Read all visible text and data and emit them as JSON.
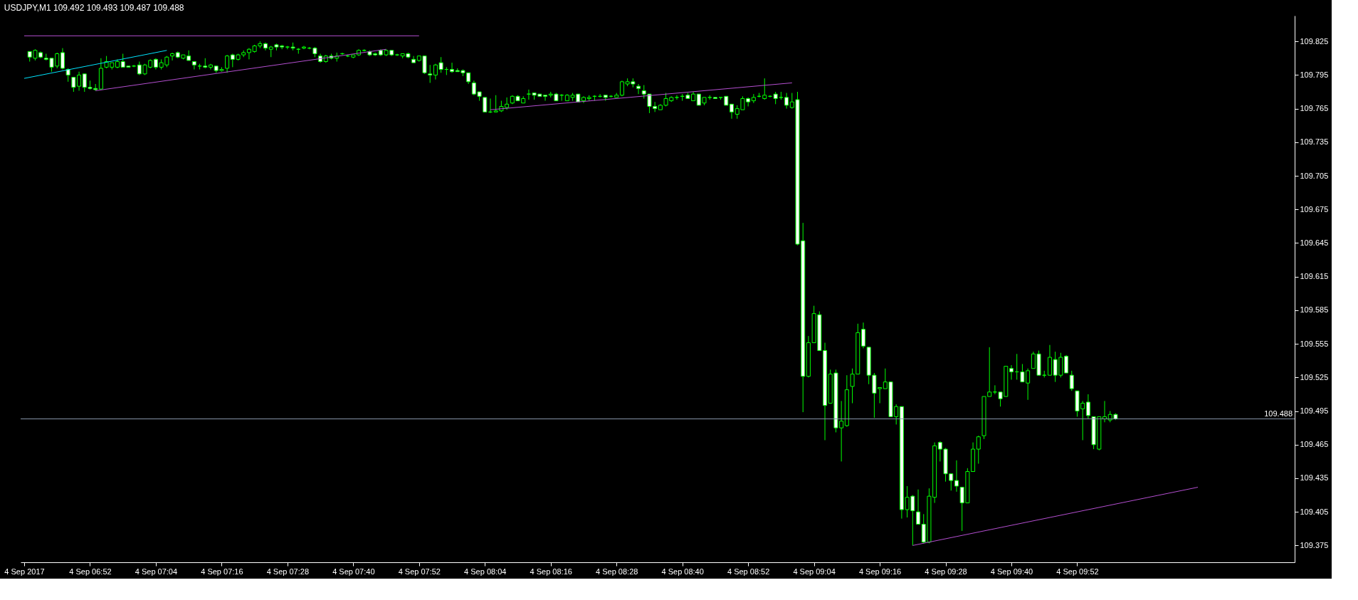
{
  "chart_data": {
    "type": "candlestick",
    "title": "USDJPY,M1  109.492 109.493 109.487 109.488",
    "color": "#00ff00",
    "xlim": [
      "2017-09-04T06:40",
      "2017-09-04T10:31"
    ],
    "ylim": [
      109.36,
      109.848
    ],
    "yticks": [
      109.375,
      109.405,
      109.435,
      109.465,
      109.495,
      109.525,
      109.555,
      109.585,
      109.615,
      109.645,
      109.675,
      109.705,
      109.735,
      109.765,
      109.795,
      109.825
    ],
    "xticks": [
      {
        "value": "2017-09-04T06:40",
        "label": "4 Sep 2017"
      },
      {
        "value": "2017-09-04T06:52",
        "label": "4 Sep 06:52"
      },
      {
        "value": "2017-09-04T07:04",
        "label": "4 Sep 07:04"
      },
      {
        "value": "2017-09-04T07:16",
        "label": "4 Sep 07:16"
      },
      {
        "value": "2017-09-04T07:28",
        "label": "4 Sep 07:28"
      },
      {
        "value": "2017-09-04T07:40",
        "label": "4 Sep 07:40"
      },
      {
        "value": "2017-09-04T07:52",
        "label": "4 Sep 07:52"
      },
      {
        "value": "2017-09-04T08:04",
        "label": "4 Sep 08:04"
      },
      {
        "value": "2017-09-04T08:16",
        "label": "4 Sep 08:16"
      },
      {
        "value": "2017-09-04T08:28",
        "label": "4 Sep 08:28"
      },
      {
        "value": "2017-09-04T08:40",
        "label": "4 Sep 08:40"
      },
      {
        "value": "2017-09-04T08:52",
        "label": "4 Sep 08:52"
      },
      {
        "value": "2017-09-04T09:04",
        "label": "4 Sep 09:04"
      },
      {
        "value": "2017-09-04T09:16",
        "label": "4 Sep 09:16"
      },
      {
        "value": "2017-09-04T09:28",
        "label": "4 Sep 09:28"
      },
      {
        "value": "2017-09-04T09:40",
        "label": "4 Sep 09:40"
      },
      {
        "value": "2017-09-04T09:52",
        "label": "4 Sep 09:52"
      }
    ],
    "x": [
      "2017-09-04T06:41",
      "2017-09-04T06:42",
      "2017-09-04T06:43",
      "2017-09-04T06:44",
      "2017-09-04T06:45",
      "2017-09-04T06:46",
      "2017-09-04T06:47",
      "2017-09-04T06:48",
      "2017-09-04T06:49",
      "2017-09-04T06:50",
      "2017-09-04T06:51",
      "2017-09-04T06:52",
      "2017-09-04T06:53",
      "2017-09-04T06:54",
      "2017-09-04T06:55",
      "2017-09-04T06:56",
      "2017-09-04T06:57",
      "2017-09-04T06:58",
      "2017-09-04T06:59",
      "2017-09-04T07:00",
      "2017-09-04T07:01",
      "2017-09-04T07:02",
      "2017-09-04T07:03",
      "2017-09-04T07:04",
      "2017-09-04T07:05",
      "2017-09-04T07:06",
      "2017-09-04T07:07",
      "2017-09-04T07:08",
      "2017-09-04T07:09",
      "2017-09-04T07:10",
      "2017-09-04T07:11",
      "2017-09-04T07:12",
      "2017-09-04T07:13",
      "2017-09-04T07:14",
      "2017-09-04T07:15",
      "2017-09-04T07:16",
      "2017-09-04T07:17",
      "2017-09-04T07:18",
      "2017-09-04T07:19",
      "2017-09-04T07:20",
      "2017-09-04T07:21",
      "2017-09-04T07:22",
      "2017-09-04T07:23",
      "2017-09-04T07:24",
      "2017-09-04T07:25",
      "2017-09-04T07:26",
      "2017-09-04T07:27",
      "2017-09-04T07:28",
      "2017-09-04T07:29",
      "2017-09-04T07:30",
      "2017-09-04T07:31",
      "2017-09-04T07:32",
      "2017-09-04T07:33",
      "2017-09-04T07:34",
      "2017-09-04T07:35",
      "2017-09-04T07:36",
      "2017-09-04T07:37",
      "2017-09-04T07:38",
      "2017-09-04T07:39",
      "2017-09-04T07:40",
      "2017-09-04T07:41",
      "2017-09-04T07:42",
      "2017-09-04T07:43",
      "2017-09-04T07:44",
      "2017-09-04T07:45",
      "2017-09-04T07:46",
      "2017-09-04T07:47",
      "2017-09-04T07:48",
      "2017-09-04T07:49",
      "2017-09-04T07:50",
      "2017-09-04T07:51",
      "2017-09-04T07:52",
      "2017-09-04T07:53",
      "2017-09-04T07:54",
      "2017-09-04T07:55",
      "2017-09-04T07:56",
      "2017-09-04T07:57",
      "2017-09-04T07:58",
      "2017-09-04T07:59",
      "2017-09-04T08:00",
      "2017-09-04T08:01",
      "2017-09-04T08:02",
      "2017-09-04T08:03",
      "2017-09-04T08:04",
      "2017-09-04T08:05",
      "2017-09-04T08:06",
      "2017-09-04T08:07",
      "2017-09-04T08:08",
      "2017-09-04T08:09",
      "2017-09-04T08:10",
      "2017-09-04T08:11",
      "2017-09-04T08:12",
      "2017-09-04T08:13",
      "2017-09-04T08:14",
      "2017-09-04T08:15",
      "2017-09-04T08:16",
      "2017-09-04T08:17",
      "2017-09-04T08:18",
      "2017-09-04T08:19",
      "2017-09-04T08:20",
      "2017-09-04T08:21",
      "2017-09-04T08:22",
      "2017-09-04T08:23",
      "2017-09-04T08:24",
      "2017-09-04T08:25",
      "2017-09-04T08:26",
      "2017-09-04T08:27",
      "2017-09-04T08:28",
      "2017-09-04T08:29",
      "2017-09-04T08:30",
      "2017-09-04T08:31",
      "2017-09-04T08:32",
      "2017-09-04T08:33",
      "2017-09-04T08:34",
      "2017-09-04T08:35",
      "2017-09-04T08:36",
      "2017-09-04T08:37",
      "2017-09-04T08:38",
      "2017-09-04T08:39",
      "2017-09-04T08:40",
      "2017-09-04T08:41",
      "2017-09-04T08:42",
      "2017-09-04T08:43",
      "2017-09-04T08:44",
      "2017-09-04T08:45",
      "2017-09-04T08:46",
      "2017-09-04T08:47",
      "2017-09-04T08:48",
      "2017-09-04T08:49",
      "2017-09-04T08:50",
      "2017-09-04T08:51",
      "2017-09-04T08:52",
      "2017-09-04T08:53",
      "2017-09-04T08:54",
      "2017-09-04T08:55",
      "2017-09-04T08:56",
      "2017-09-04T08:57",
      "2017-09-04T08:58",
      "2017-09-04T08:59",
      "2017-09-04T09:00",
      "2017-09-04T09:01",
      "2017-09-04T09:02",
      "2017-09-04T09:03",
      "2017-09-04T09:04",
      "2017-09-04T09:05",
      "2017-09-04T09:06",
      "2017-09-04T09:07",
      "2017-09-04T09:08",
      "2017-09-04T09:09",
      "2017-09-04T09:10",
      "2017-09-04T09:11",
      "2017-09-04T09:12",
      "2017-09-04T09:13",
      "2017-09-04T09:14",
      "2017-09-04T09:15",
      "2017-09-04T09:16",
      "2017-09-04T09:17",
      "2017-09-04T09:18",
      "2017-09-04T09:19",
      "2017-09-04T09:20",
      "2017-09-04T09:21",
      "2017-09-04T09:22",
      "2017-09-04T09:23",
      "2017-09-04T09:24",
      "2017-09-04T09:25",
      "2017-09-04T09:26",
      "2017-09-04T09:27",
      "2017-09-04T09:28",
      "2017-09-04T09:29",
      "2017-09-04T09:30",
      "2017-09-04T09:31",
      "2017-09-04T09:32",
      "2017-09-04T09:33",
      "2017-09-04T09:34",
      "2017-09-04T09:35",
      "2017-09-04T09:36",
      "2017-09-04T09:37",
      "2017-09-04T09:38",
      "2017-09-04T09:39",
      "2017-09-04T09:40",
      "2017-09-04T09:41",
      "2017-09-04T09:42",
      "2017-09-04T09:43",
      "2017-09-04T09:44",
      "2017-09-04T09:45",
      "2017-09-04T09:46",
      "2017-09-04T09:47",
      "2017-09-04T09:48",
      "2017-09-04T09:49",
      "2017-09-04T09:50",
      "2017-09-04T09:51",
      "2017-09-04T09:52",
      "2017-09-04T09:53",
      "2017-09-04T09:54",
      "2017-09-04T09:55",
      "2017-09-04T09:56",
      "2017-09-04T09:57",
      "2017-09-04T09:58",
      "2017-09-04T09:59"
    ],
    "ohlc": [
      [
        109.816,
        109.816,
        109.807,
        109.811
      ],
      [
        109.81,
        109.818,
        109.808,
        109.817
      ],
      [
        109.815,
        109.816,
        109.81,
        109.811
      ],
      [
        109.81,
        109.814,
        109.808,
        109.809
      ],
      [
        109.81,
        109.81,
        109.798,
        109.802
      ],
      [
        109.803,
        109.815,
        109.801,
        109.814
      ],
      [
        109.815,
        109.819,
        109.8,
        109.801
      ],
      [
        109.8,
        109.801,
        109.789,
        109.795
      ],
      [
        109.793,
        109.793,
        109.78,
        109.784
      ],
      [
        109.785,
        109.798,
        109.781,
        109.795
      ],
      [
        109.796,
        109.796,
        109.78,
        109.784
      ],
      [
        109.784,
        109.79,
        109.782,
        109.783
      ],
      [
        109.783,
        109.787,
        109.781,
        109.782
      ],
      [
        109.7825,
        109.81,
        109.782,
        109.801
      ],
      [
        109.802,
        109.812,
        109.801,
        109.807
      ],
      [
        109.802,
        109.806,
        109.8,
        109.806
      ],
      [
        109.802,
        109.809,
        109.801,
        109.807
      ],
      [
        109.807,
        109.814,
        109.802,
        109.802
      ],
      [
        109.803,
        109.803,
        109.802,
        109.802
      ],
      [
        109.803,
        109.804,
        109.802,
        109.803
      ],
      [
        109.804,
        109.807,
        109.795,
        109.796
      ],
      [
        109.796,
        109.805,
        109.795,
        109.804
      ],
      [
        109.802,
        109.809,
        109.801,
        109.808
      ],
      [
        109.809,
        109.81,
        109.8,
        109.802
      ],
      [
        109.802,
        109.809,
        109.8,
        109.806
      ],
      [
        109.804,
        109.812,
        109.802,
        109.811
      ],
      [
        109.812,
        109.815,
        109.808,
        109.814
      ],
      [
        109.815,
        109.816,
        109.81,
        109.811
      ],
      [
        109.81,
        109.813,
        109.809,
        109.813
      ],
      [
        109.812,
        109.817,
        109.808,
        109.808
      ],
      [
        109.807,
        109.807,
        109.8,
        109.804
      ],
      [
        109.803,
        109.805,
        109.8,
        109.803
      ],
      [
        109.803,
        109.81,
        109.801,
        109.802
      ],
      [
        109.802,
        109.805,
        109.8,
        109.804
      ],
      [
        109.803,
        109.803,
        109.797,
        109.799
      ],
      [
        109.799,
        109.802,
        109.798,
        109.8
      ],
      [
        109.801,
        109.813,
        109.797,
        109.812
      ],
      [
        109.813,
        109.814,
        109.802,
        109.809
      ],
      [
        109.809,
        109.814,
        109.808,
        109.813
      ],
      [
        109.813,
        109.817,
        109.811,
        109.815
      ],
      [
        109.815,
        109.819,
        109.809,
        109.818
      ],
      [
        109.816,
        109.822,
        109.815,
        109.821
      ],
      [
        109.821,
        109.825,
        109.819,
        109.823
      ],
      [
        109.823,
        109.824,
        109.817,
        109.819
      ],
      [
        109.818,
        109.821,
        109.811,
        109.82
      ],
      [
        109.822,
        109.823,
        109.817,
        109.82
      ],
      [
        109.821,
        109.822,
        109.818,
        109.82
      ],
      [
        109.82,
        109.821,
        109.818,
        109.82
      ],
      [
        109.82,
        109.824,
        109.817,
        109.819
      ],
      [
        109.818,
        109.819,
        109.814,
        109.818
      ],
      [
        109.819,
        109.821,
        109.818,
        109.82
      ],
      [
        109.819,
        109.82,
        109.818,
        109.819
      ],
      [
        109.819,
        109.82,
        109.811,
        109.814
      ],
      [
        109.812,
        109.814,
        109.806,
        109.807
      ],
      [
        109.807,
        109.813,
        109.806,
        109.812
      ],
      [
        109.812,
        109.814,
        109.809,
        109.81
      ],
      [
        109.81,
        109.815,
        109.807,
        109.812
      ],
      [
        109.814,
        109.815,
        109.813,
        109.814
      ],
      [
        109.812,
        109.813,
        109.811,
        109.812
      ],
      [
        109.811,
        109.813,
        109.81,
        109.813
      ],
      [
        109.813,
        109.818,
        109.812,
        109.817
      ],
      [
        109.817,
        109.818,
        109.816,
        109.817
      ],
      [
        109.816,
        109.817,
        109.812,
        109.813
      ],
      [
        109.814,
        109.815,
        109.812,
        109.813
      ],
      [
        109.817,
        109.818,
        109.812,
        109.813
      ],
      [
        109.813,
        109.818,
        109.812,
        109.817
      ],
      [
        109.817,
        109.817,
        109.812,
        109.813
      ],
      [
        109.813,
        109.814,
        109.812,
        109.813
      ],
      [
        109.812,
        109.814,
        109.81,
        109.814
      ],
      [
        109.814,
        109.815,
        109.81,
        109.811
      ],
      [
        109.809,
        109.812,
        109.806,
        109.806
      ],
      [
        109.808,
        109.812,
        109.807,
        109.812
      ],
      [
        109.812,
        109.812,
        109.796,
        109.797
      ],
      [
        109.796,
        109.804,
        109.788,
        109.795
      ],
      [
        109.795,
        109.805,
        109.791,
        109.804
      ],
      [
        109.806,
        109.811,
        109.797,
        109.8
      ],
      [
        109.8,
        109.802,
        109.795,
        109.8
      ],
      [
        109.8,
        109.806,
        109.797,
        109.798
      ],
      [
        109.799,
        109.801,
        109.798,
        109.798
      ],
      [
        109.799,
        109.8,
        109.794,
        109.797
      ],
      [
        109.797,
        109.797,
        109.787,
        109.789
      ],
      [
        109.788,
        109.79,
        109.777,
        109.778
      ],
      [
        109.78,
        109.78,
        109.772,
        109.776
      ],
      [
        109.775,
        109.775,
        109.762,
        109.762
      ],
      [
        109.762,
        109.774,
        109.761,
        109.762
      ],
      [
        109.762,
        109.777,
        109.762,
        109.763
      ],
      [
        109.763,
        109.772,
        109.762,
        109.767
      ],
      [
        109.766,
        109.775,
        109.764,
        109.769
      ],
      [
        109.77,
        109.777,
        109.769,
        109.776
      ],
      [
        109.776,
        109.777,
        109.772,
        109.772
      ],
      [
        109.77,
        109.776,
        109.77,
        109.774
      ],
      [
        109.778,
        109.782,
        109.773,
        109.778
      ],
      [
        109.779,
        109.779,
        109.773,
        109.777
      ],
      [
        109.778,
        109.778,
        109.776,
        109.776
      ],
      [
        109.777,
        109.777,
        109.772,
        109.776
      ],
      [
        109.777,
        109.78,
        109.775,
        109.778
      ],
      [
        109.778,
        109.779,
        109.772,
        109.772
      ],
      [
        109.777,
        109.778,
        109.772,
        109.777
      ],
      [
        109.772,
        109.778,
        109.772,
        109.777
      ],
      [
        109.775,
        109.779,
        109.772,
        109.777
      ],
      [
        109.778,
        109.778,
        109.771,
        109.771
      ],
      [
        109.772,
        109.776,
        109.77,
        109.775
      ],
      [
        109.774,
        109.777,
        109.772,
        109.775
      ],
      [
        109.776,
        109.777,
        109.772,
        109.776
      ],
      [
        109.776,
        109.778,
        109.775,
        109.776
      ],
      [
        109.777,
        109.777,
        109.772,
        109.775
      ],
      [
        109.776,
        109.777,
        109.775,
        109.776
      ],
      [
        109.775,
        109.779,
        109.775,
        109.777
      ],
      [
        109.777,
        109.79,
        109.776,
        109.789
      ],
      [
        109.787,
        109.792,
        109.785,
        109.789
      ],
      [
        109.789,
        109.792,
        109.784,
        109.787
      ],
      [
        109.785,
        109.787,
        109.778,
        109.783
      ],
      [
        109.781,
        109.786,
        109.774,
        109.778
      ],
      [
        109.778,
        109.778,
        109.761,
        109.767
      ],
      [
        109.767,
        109.771,
        109.762,
        109.765
      ],
      [
        109.764,
        109.769,
        109.764,
        109.768
      ],
      [
        109.768,
        109.779,
        109.767,
        109.774
      ],
      [
        109.772,
        109.776,
        109.771,
        109.775
      ],
      [
        109.775,
        109.777,
        109.773,
        109.775
      ],
      [
        109.776,
        109.778,
        109.772,
        109.776
      ],
      [
        109.777,
        109.779,
        109.774,
        109.774
      ],
      [
        109.772,
        109.78,
        109.772,
        109.778
      ],
      [
        109.778,
        109.778,
        109.768,
        109.768
      ],
      [
        109.77,
        109.775,
        109.768,
        109.775
      ],
      [
        109.775,
        109.777,
        109.773,
        109.775
      ],
      [
        109.775,
        109.775,
        109.774,
        109.774
      ],
      [
        109.775,
        109.775,
        109.773,
        109.775
      ],
      [
        109.776,
        109.776,
        109.768,
        109.768
      ],
      [
        109.769,
        109.769,
        109.756,
        109.762
      ],
      [
        109.76,
        109.768,
        109.756,
        109.765
      ],
      [
        109.764,
        109.776,
        109.764,
        109.774
      ],
      [
        109.774,
        109.775,
        109.767,
        109.771
      ],
      [
        109.772,
        109.778,
        109.77,
        109.775
      ],
      [
        109.776,
        109.779,
        109.775,
        109.776
      ],
      [
        109.774,
        109.792,
        109.773,
        109.777
      ],
      [
        109.776,
        109.777,
        109.775,
        109.776
      ],
      [
        109.778,
        109.78,
        109.769,
        109.774
      ],
      [
        109.775,
        109.78,
        109.773,
        109.775
      ],
      [
        109.775,
        109.779,
        109.765,
        109.768
      ],
      [
        109.766,
        109.779,
        109.765,
        109.771
      ],
      [
        109.773,
        109.78,
        109.643,
        109.644
      ],
      [
        109.647,
        109.663,
        109.494,
        109.526
      ],
      [
        109.526,
        109.562,
        109.525,
        109.556
      ],
      [
        109.556,
        109.589,
        109.556,
        109.582
      ],
      [
        109.581,
        109.584,
        109.549,
        109.549
      ],
      [
        109.549,
        109.556,
        109.469,
        109.5
      ],
      [
        109.502,
        109.532,
        109.502,
        109.528
      ],
      [
        109.529,
        109.532,
        109.476,
        109.48
      ],
      [
        109.48,
        109.504,
        109.45,
        109.486
      ],
      [
        109.482,
        109.527,
        109.481,
        109.514
      ],
      [
        109.517,
        109.533,
        109.502,
        109.528
      ],
      [
        109.528,
        109.573,
        109.528,
        109.565
      ],
      [
        109.568,
        109.574,
        109.551,
        109.553
      ],
      [
        109.552,
        109.552,
        109.519,
        109.527
      ],
      [
        109.527,
        109.529,
        109.489,
        109.511
      ],
      [
        109.515,
        109.516,
        109.502,
        109.516
      ],
      [
        109.515,
        109.533,
        109.515,
        109.521
      ],
      [
        109.521,
        109.521,
        109.49,
        109.49
      ],
      [
        109.49,
        109.501,
        109.483,
        109.499
      ],
      [
        109.499,
        109.499,
        109.399,
        109.407
      ],
      [
        109.407,
        109.428,
        109.4,
        109.418
      ],
      [
        109.419,
        109.42,
        109.375,
        109.406
      ],
      [
        109.405,
        109.425,
        109.394,
        109.394
      ],
      [
        109.394,
        109.403,
        109.377,
        109.378
      ],
      [
        109.378,
        109.426,
        109.377,
        109.419
      ],
      [
        109.418,
        109.467,
        109.413,
        109.464
      ],
      [
        109.467,
        109.468,
        109.45,
        109.461
      ],
      [
        109.461,
        109.462,
        109.432,
        109.439
      ],
      [
        109.439,
        109.439,
        109.424,
        109.433
      ],
      [
        109.433,
        109.451,
        109.423,
        109.428
      ],
      [
        109.427,
        109.427,
        109.388,
        109.413
      ],
      [
        109.413,
        109.444,
        109.413,
        109.441
      ],
      [
        109.441,
        109.467,
        109.441,
        109.461
      ],
      [
        109.461,
        109.473,
        109.448,
        109.472
      ],
      [
        109.473,
        109.508,
        109.47,
        109.508
      ],
      [
        109.508,
        109.552,
        109.508,
        109.512
      ],
      [
        109.512,
        109.518,
        109.51,
        109.512
      ],
      [
        109.512,
        109.512,
        109.499,
        109.506
      ],
      [
        109.508,
        109.535,
        109.508,
        109.535
      ],
      [
        109.533,
        109.536,
        109.523,
        109.53
      ],
      [
        109.53,
        109.546,
        109.523,
        109.53
      ],
      [
        109.53,
        109.537,
        109.521,
        109.521
      ],
      [
        109.52,
        109.533,
        109.505,
        109.531
      ],
      [
        109.533,
        109.548,
        109.533,
        109.546
      ],
      [
        109.546,
        109.549,
        109.527,
        109.527
      ],
      [
        109.527,
        109.531,
        109.525,
        109.527
      ],
      [
        109.527,
        109.554,
        109.527,
        109.543
      ],
      [
        109.541,
        109.548,
        109.521,
        109.527
      ],
      [
        109.527,
        109.547,
        109.525,
        109.543
      ],
      [
        109.544,
        109.545,
        109.529,
        109.529
      ],
      [
        109.527,
        109.531,
        109.513,
        109.515
      ],
      [
        109.513,
        109.513,
        109.49,
        109.495
      ],
      [
        109.497,
        109.504,
        109.469,
        109.502
      ],
      [
        109.503,
        109.51,
        109.488,
        109.491
      ],
      [
        109.49,
        109.49,
        109.461,
        109.465
      ],
      [
        109.461,
        109.49,
        109.46,
        109.49
      ],
      [
        109.488,
        109.504,
        109.485,
        109.49
      ],
      [
        109.487,
        109.495,
        109.485,
        109.492
      ],
      [
        109.492,
        109.493,
        109.487,
        109.488
      ]
    ],
    "series": [
      {
        "type": "line",
        "color": "#00e5ff",
        "x": [
          "2017-09-04T06:40",
          "2017-09-04T07:06"
        ],
        "values": [
          109.792,
          109.817
        ]
      },
      {
        "type": "line",
        "color": "#b44fd0",
        "x": [
          "2017-09-04T06:53",
          "2017-09-04T07:46"
        ],
        "values": [
          109.781,
          109.818
        ]
      },
      {
        "type": "line",
        "color": "#b44fd0",
        "x": [
          "2017-09-04T06:40",
          "2017-09-04T07:52"
        ],
        "values": [
          109.83,
          109.83
        ]
      },
      {
        "type": "line",
        "color": "#b44fd0",
        "x": [
          "2017-09-04T08:05",
          "2017-09-04T09:00"
        ],
        "values": [
          109.764,
          109.788
        ]
      },
      {
        "type": "line",
        "color": "#b44fd0",
        "x": [
          "2017-09-04T09:22",
          "2017-09-04T10:14"
        ],
        "values": [
          109.375,
          109.427
        ]
      }
    ],
    "ref_lines": [
      {
        "axis": "y",
        "value": 109.488,
        "label": "109.488",
        "color": "#8796a8"
      }
    ]
  }
}
